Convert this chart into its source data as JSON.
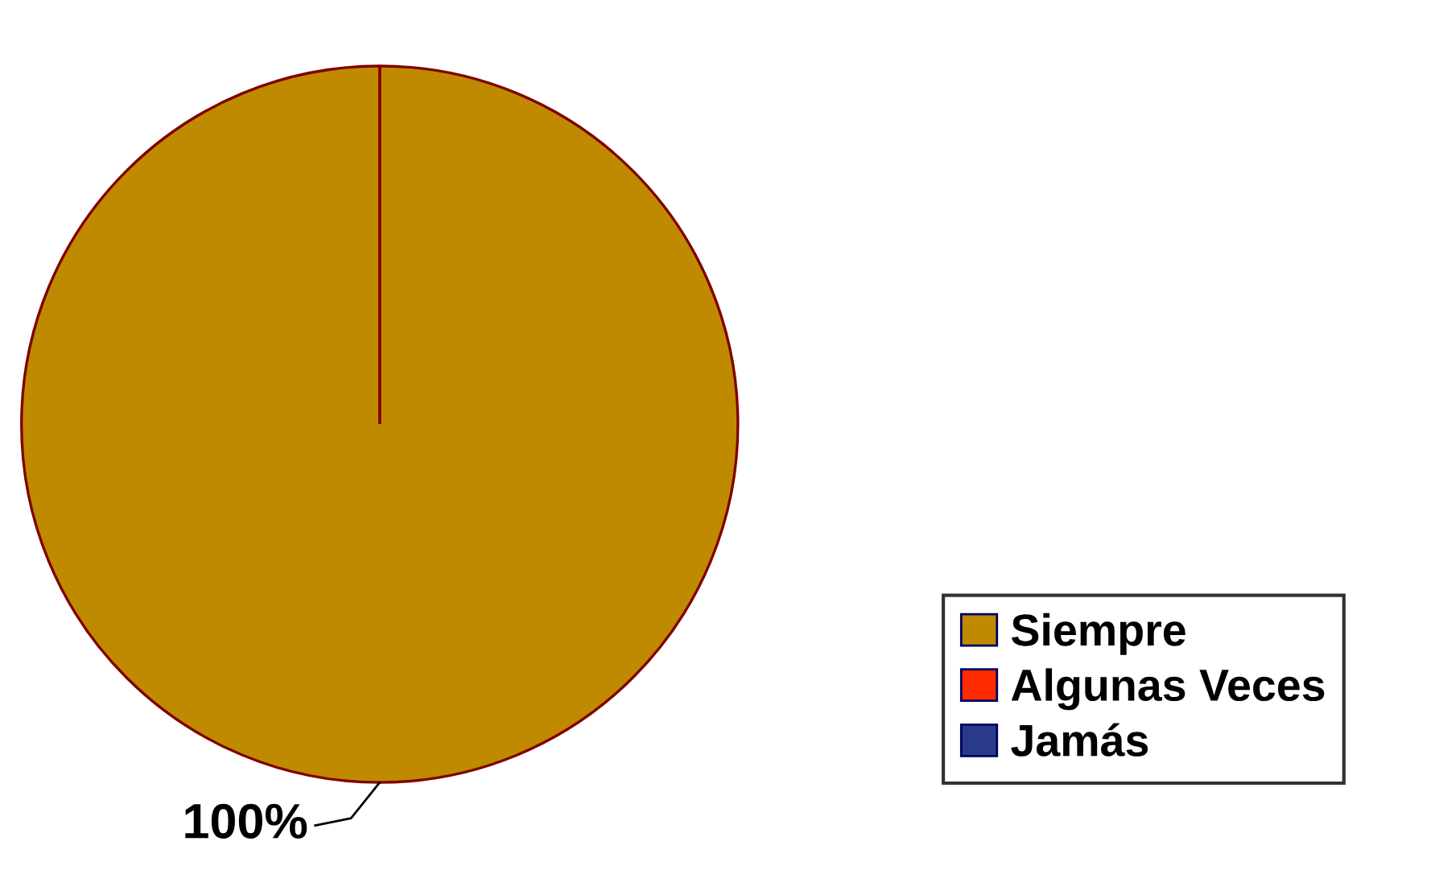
{
  "chart_data": {
    "type": "pie",
    "categories": [
      "Siempre",
      "Algunas Veces",
      "Jamás"
    ],
    "values": [
      100,
      0,
      0
    ],
    "colors": [
      "#c08a00",
      "#ff2a00",
      "#2a3a8a"
    ],
    "value_labels": [
      "100%",
      null,
      null
    ],
    "legend": "right"
  }
}
